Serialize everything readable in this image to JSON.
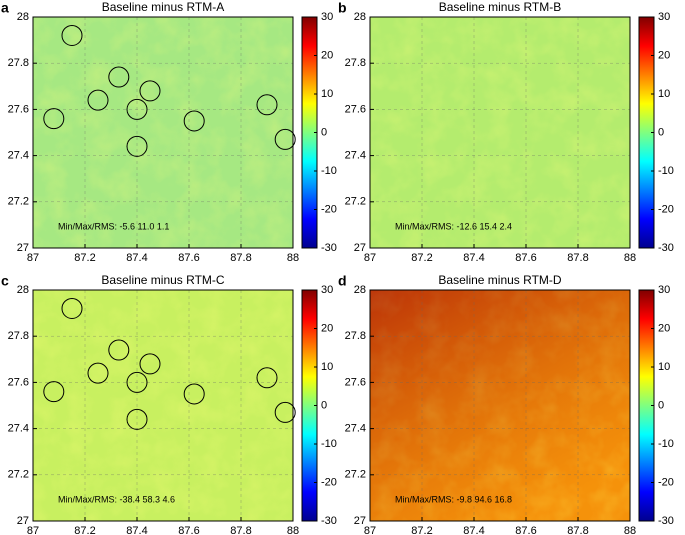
{
  "chart_data": [
    {
      "type": "heatmap",
      "panel_label": "a",
      "title": "Baseline minus RTM-A",
      "color": "#a6e882",
      "xlim": [
        87,
        88
      ],
      "xticks": [
        87,
        87.2,
        87.4,
        87.6,
        87.8,
        88
      ],
      "ylim": [
        27,
        28
      ],
      "yticks": [
        27,
        27.2,
        27.4,
        27.6,
        27.8,
        28
      ],
      "grid": true,
      "colormap": "jet",
      "clim": [
        -30,
        30
      ],
      "cticks": [
        -30,
        -20,
        -10,
        0,
        10,
        20,
        30
      ],
      "annotation": "Min/Max/RMS: -5.6   11.0   1.1",
      "markers": {
        "x": [
          87.15,
          87.33,
          87.25,
          87.45,
          87.4,
          87.08,
          87.62,
          87.4,
          87.9,
          87.97
        ],
        "y": [
          27.92,
          27.74,
          27.64,
          27.68,
          27.6,
          27.56,
          27.55,
          27.44,
          27.62,
          27.47
        ]
      }
    },
    {
      "type": "heatmap",
      "panel_label": "b",
      "title": "Baseline minus RTM-B",
      "color": "#b4ec6e",
      "xlim": [
        87,
        88
      ],
      "xticks": [
        87,
        87.2,
        87.4,
        87.6,
        87.8,
        88
      ],
      "ylim": [
        27,
        28
      ],
      "yticks": [
        27,
        27.2,
        27.4,
        27.6,
        27.8,
        28
      ],
      "grid": true,
      "colormap": "jet",
      "clim": [
        -30,
        30
      ],
      "cticks": [
        -30,
        -20,
        -10,
        0,
        10,
        20,
        30
      ],
      "annotation": "Min/Max/RMS: -12.6   15.4   2.4"
    },
    {
      "type": "heatmap",
      "panel_label": "c",
      "title": "Baseline minus RTM-C",
      "color": "#c8f060",
      "xlim": [
        87,
        88
      ],
      "xticks": [
        87,
        87.2,
        87.4,
        87.6,
        87.8,
        88
      ],
      "ylim": [
        27,
        28
      ],
      "yticks": [
        27,
        27.2,
        27.4,
        27.6,
        27.8,
        28
      ],
      "grid": true,
      "colormap": "jet",
      "clim": [
        -30,
        30
      ],
      "cticks": [
        -30,
        -20,
        -10,
        0,
        10,
        20,
        30
      ],
      "annotation": "Min/Max/RMS: -38.4   58.3   4.6",
      "markers": {
        "x": [
          87.15,
          87.33,
          87.25,
          87.45,
          87.4,
          87.08,
          87.62,
          87.4,
          87.9,
          87.97
        ],
        "y": [
          27.92,
          27.74,
          27.64,
          27.68,
          27.6,
          27.56,
          27.55,
          27.44,
          27.62,
          27.47
        ]
      }
    },
    {
      "type": "heatmap",
      "panel_label": "d",
      "title": "Baseline minus RTM-D",
      "color": "#f07010",
      "xlim": [
        87,
        88
      ],
      "xticks": [
        87,
        87.2,
        87.4,
        87.6,
        87.8,
        88
      ],
      "ylim": [
        27,
        28
      ],
      "yticks": [
        27,
        27.2,
        27.4,
        27.6,
        27.8,
        28
      ],
      "grid": true,
      "colormap": "jet",
      "clim": [
        -30,
        30
      ],
      "cticks": [
        -30,
        -20,
        -10,
        0,
        10,
        20,
        30
      ],
      "annotation": "Min/Max/RMS: -9.8   94.6   16.8"
    }
  ]
}
